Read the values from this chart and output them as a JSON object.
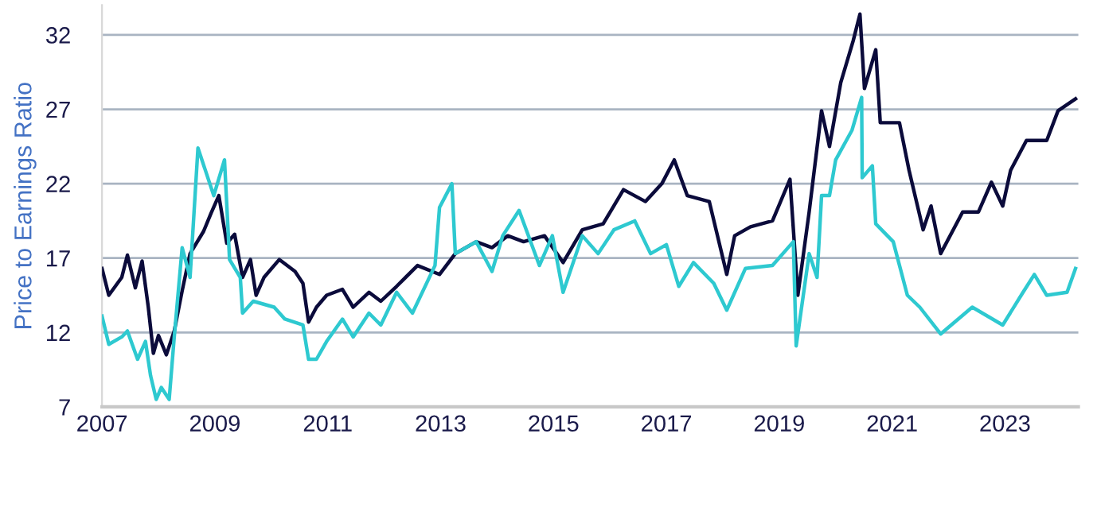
{
  "chart_data": {
    "type": "line",
    "ylabel": "Price to Earnings Ratio",
    "xlim": [
      2007,
      2024.3
    ],
    "ylim": [
      7,
      34
    ],
    "xticks": [
      2007,
      2009,
      2011,
      2013,
      2015,
      2017,
      2019,
      2021,
      2023
    ],
    "yticks": [
      7,
      12,
      17,
      22,
      27,
      32
    ],
    "grid": "y",
    "marker": "none",
    "line_style": "solid",
    "series": [
      {
        "color": "#0b0b3b",
        "x": [
          2007.0,
          2007.12,
          2007.35,
          2007.45,
          2007.59,
          2007.71,
          2007.82,
          2007.91,
          2008.0,
          2008.14,
          2008.28,
          2008.42,
          2008.56,
          2008.8,
          2008.93,
          2009.07,
          2009.21,
          2009.35,
          2009.49,
          2009.63,
          2009.73,
          2009.87,
          2010.14,
          2010.42,
          2010.56,
          2010.66,
          2010.8,
          2010.98,
          2011.26,
          2011.45,
          2011.73,
          2011.94,
          2012.22,
          2012.59,
          2012.98,
          2013.26,
          2013.63,
          2013.91,
          2014.19,
          2014.47,
          2014.84,
          2015.17,
          2015.51,
          2015.88,
          2016.24,
          2016.63,
          2016.92,
          2017.14,
          2017.37,
          2017.76,
          2018.07,
          2018.21,
          2018.49,
          2018.88,
          2019.19,
          2019.33,
          2019.53,
          2019.75,
          2019.89,
          2020.09,
          2020.31,
          2020.43,
          2020.51,
          2020.71,
          2020.79,
          2021.13,
          2021.3,
          2021.55,
          2021.69,
          2021.86,
          2022.25,
          2022.53,
          2022.76,
          2022.96,
          2023.1,
          2023.38,
          2023.74,
          2023.94,
          2024.25
        ],
        "values": [
          16.3,
          14.5,
          15.7,
          17.2,
          15.0,
          16.8,
          13.7,
          10.6,
          11.8,
          10.5,
          12.1,
          14.8,
          17.3,
          18.8,
          20.0,
          21.2,
          18.0,
          18.6,
          15.7,
          16.9,
          14.5,
          15.7,
          16.9,
          16.1,
          15.3,
          12.7,
          13.7,
          14.5,
          14.9,
          13.7,
          14.7,
          14.1,
          15.1,
          16.5,
          15.9,
          17.3,
          18.1,
          17.7,
          18.5,
          18.1,
          18.5,
          16.7,
          18.9,
          19.3,
          21.6,
          20.8,
          22.0,
          23.6,
          21.2,
          20.8,
          15.9,
          18.5,
          19.1,
          19.5,
          22.3,
          14.5,
          20.1,
          26.9,
          24.5,
          28.8,
          31.6,
          33.4,
          28.4,
          31.0,
          26.1,
          26.1,
          22.9,
          18.9,
          20.5,
          17.3,
          20.1,
          20.1,
          22.1,
          20.5,
          22.9,
          24.9,
          24.9,
          26.9,
          27.7
        ]
      },
      {
        "color": "#2ec9d0",
        "x": [
          2007.0,
          2007.12,
          2007.35,
          2007.45,
          2007.63,
          2007.77,
          2007.86,
          2007.96,
          2008.05,
          2008.19,
          2008.28,
          2008.42,
          2008.56,
          2008.7,
          2008.84,
          2008.98,
          2009.17,
          2009.26,
          2009.45,
          2009.49,
          2009.68,
          2010.05,
          2010.24,
          2010.56,
          2010.66,
          2010.8,
          2010.98,
          2011.26,
          2011.45,
          2011.73,
          2011.94,
          2012.22,
          2012.5,
          2012.9,
          2012.98,
          2013.2,
          2013.26,
          2013.63,
          2013.91,
          2014.1,
          2014.39,
          2014.75,
          2014.98,
          2015.17,
          2015.51,
          2015.79,
          2016.07,
          2016.44,
          2016.72,
          2017.0,
          2017.22,
          2017.48,
          2017.84,
          2018.07,
          2018.4,
          2018.88,
          2019.25,
          2019.3,
          2019.53,
          2019.67,
          2019.75,
          2019.89,
          2020.0,
          2020.29,
          2020.46,
          2020.47,
          2020.65,
          2020.71,
          2021.02,
          2021.27,
          2021.49,
          2021.86,
          2022.42,
          2022.96,
          2023.32,
          2023.52,
          2023.74,
          2024.1,
          2024.25
        ],
        "values": [
          13.1,
          11.2,
          11.7,
          12.1,
          10.2,
          11.4,
          9.1,
          7.5,
          8.3,
          7.5,
          11.7,
          17.7,
          15.7,
          24.4,
          22.8,
          21.2,
          23.6,
          16.9,
          15.7,
          13.3,
          14.1,
          13.7,
          12.9,
          12.5,
          10.2,
          10.2,
          11.4,
          12.9,
          11.7,
          13.3,
          12.5,
          14.7,
          13.3,
          16.5,
          20.4,
          22.0,
          17.3,
          18.1,
          16.1,
          18.5,
          20.2,
          16.5,
          18.5,
          14.7,
          18.5,
          17.3,
          18.9,
          19.5,
          17.3,
          17.9,
          15.1,
          16.7,
          15.3,
          13.5,
          16.3,
          16.5,
          18.1,
          11.1,
          17.3,
          15.7,
          21.2,
          21.2,
          23.6,
          25.6,
          27.8,
          22.4,
          23.2,
          19.3,
          18.1,
          14.5,
          13.7,
          11.9,
          13.7,
          12.5,
          14.7,
          15.9,
          14.5,
          14.7,
          16.3
        ]
      }
    ]
  }
}
